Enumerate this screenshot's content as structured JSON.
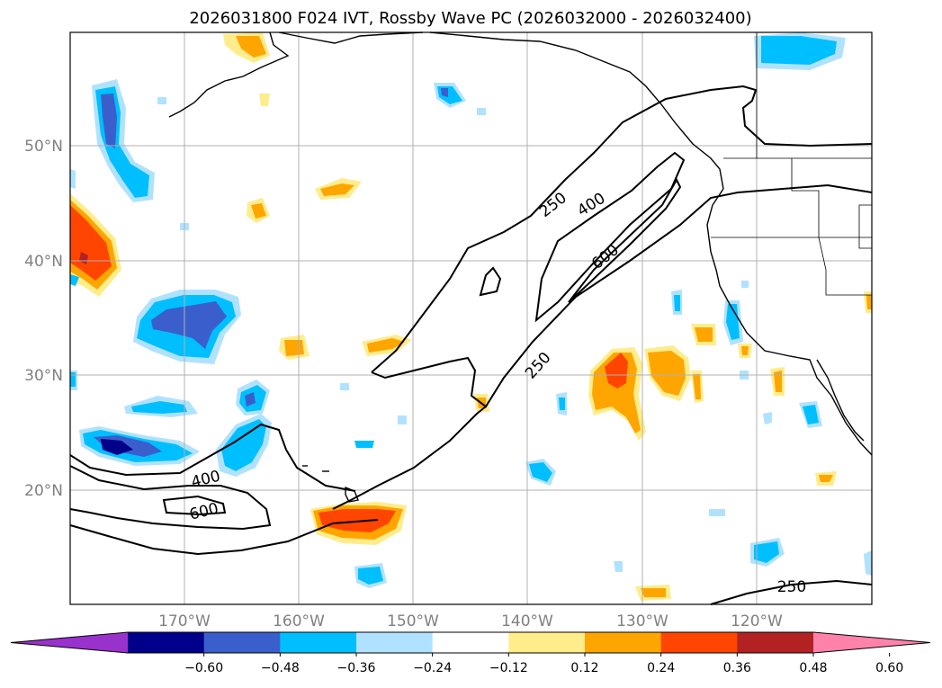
{
  "title": "2026031800 F024 IVT, Rossby Wave PC (2026032000 - 2026032400)",
  "latitude_labels": [
    "50°N",
    "40°N",
    "30°N",
    "20°N"
  ],
  "longitude_labels": [
    "170°W",
    "160°W",
    "150°W",
    "140°W",
    "130°W",
    "120°W"
  ],
  "ivt_contour_labels": [
    "250",
    "400",
    "600",
    "250",
    "400",
    "600",
    "250"
  ],
  "colorbar": {
    "tick_labels": [
      "−0.60",
      "−0.48",
      "−0.36",
      "−0.24",
      "−0.12",
      "0.12",
      "0.24",
      "0.36",
      "0.48",
      "0.60"
    ],
    "colors": [
      "#9932cc",
      "#00008b",
      "#3a5fcd",
      "#00bfff",
      "#b0e2ff",
      "#ffffff",
      "#ffec8b",
      "#ffa500",
      "#ff4500",
      "#b22222",
      "#ff82ab"
    ]
  },
  "colors": {
    "negative_strong": "#3a5fcd",
    "negative": "#00bfff",
    "negative_weak": "#b0e2ff",
    "positive_weak": "#ffec8b",
    "positive": "#ffa500",
    "positive_strong": "#ff4500",
    "darkest_negative": "#00008b",
    "grid": "#b0b0b0"
  }
}
